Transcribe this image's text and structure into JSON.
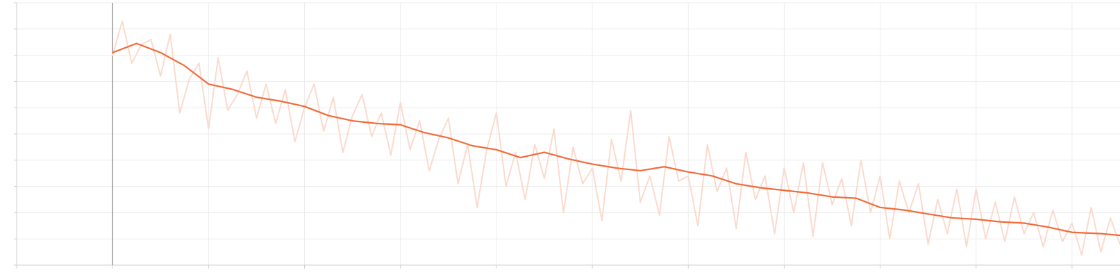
{
  "chart_data": {
    "type": "line",
    "title": "",
    "xlabel": "",
    "ylabel": "",
    "xlim": [
      -1,
      10.5
    ],
    "ylim": [
      0,
      10
    ],
    "grid": true,
    "legend": "none",
    "colors": {
      "smoothed": "#f26b3a",
      "raw": "#fbd8cb",
      "grid": "#ececec",
      "axis": "#cfcfcf",
      "zero_line": "#999999"
    },
    "series": [
      {
        "role": "smoothed",
        "x": [
          0,
          0.25,
          0.5,
          0.75,
          1,
          1.25,
          1.5,
          1.75,
          2,
          2.25,
          2.5,
          2.75,
          3,
          3.25,
          3.5,
          3.75,
          4,
          4.25,
          4.5,
          4.75,
          5,
          5.25,
          5.5,
          5.75,
          6,
          6.25,
          6.5,
          6.75,
          7,
          7.25,
          7.5,
          7.75,
          8,
          8.25,
          8.5,
          8.75,
          9,
          9.25,
          9.5,
          9.75,
          10,
          10.3,
          10.6
        ],
        "y": [
          8.1,
          8.45,
          8.1,
          7.6,
          6.9,
          6.7,
          6.4,
          6.25,
          6.05,
          5.7,
          5.5,
          5.4,
          5.35,
          5.05,
          4.85,
          4.55,
          4.4,
          4.1,
          4.3,
          4.05,
          3.85,
          3.7,
          3.6,
          3.75,
          3.55,
          3.4,
          3.1,
          2.95,
          2.85,
          2.75,
          2.6,
          2.55,
          2.2,
          2.1,
          1.95,
          1.8,
          1.75,
          1.65,
          1.6,
          1.45,
          1.25,
          1.2,
          1.1
        ]
      },
      {
        "role": "raw",
        "x": [
          0,
          0.1,
          0.2,
          0.3,
          0.4,
          0.5,
          0.6,
          0.7,
          0.8,
          0.9,
          1,
          1.1,
          1.2,
          1.3,
          1.4,
          1.5,
          1.6,
          1.7,
          1.8,
          1.9,
          2,
          2.1,
          2.2,
          2.3,
          2.4,
          2.5,
          2.6,
          2.7,
          2.8,
          2.9,
          3,
          3.1,
          3.2,
          3.3,
          3.4,
          3.5,
          3.6,
          3.7,
          3.8,
          3.9,
          4,
          4.1,
          4.2,
          4.3,
          4.4,
          4.5,
          4.6,
          4.7,
          4.8,
          4.9,
          5,
          5.1,
          5.2,
          5.3,
          5.4,
          5.5,
          5.6,
          5.7,
          5.8,
          5.9,
          6,
          6.1,
          6.2,
          6.3,
          6.4,
          6.5,
          6.6,
          6.7,
          6.8,
          6.9,
          7,
          7.1,
          7.2,
          7.3,
          7.4,
          7.5,
          7.6,
          7.7,
          7.8,
          7.9,
          8,
          8.1,
          8.2,
          8.3,
          8.4,
          8.5,
          8.6,
          8.7,
          8.8,
          8.9,
          9,
          9.1,
          9.2,
          9.3,
          9.4,
          9.5,
          9.6,
          9.7,
          9.8,
          9.9,
          10,
          10.1,
          10.2,
          10.3,
          10.4,
          10.5,
          10.6
        ],
        "y": [
          8.0,
          9.3,
          7.7,
          8.4,
          8.6,
          7.2,
          8.8,
          5.8,
          7.1,
          7.7,
          5.2,
          7.9,
          5.9,
          6.5,
          7.4,
          5.6,
          6.9,
          5.4,
          6.7,
          4.7,
          6.0,
          6.9,
          5.1,
          6.4,
          4.3,
          5.7,
          6.5,
          4.9,
          5.8,
          4.2,
          6.2,
          4.4,
          5.5,
          3.6,
          4.8,
          5.6,
          3.1,
          4.6,
          2.2,
          4.4,
          5.8,
          3.0,
          4.3,
          2.5,
          4.6,
          3.3,
          5.2,
          2.0,
          4.5,
          3.1,
          3.7,
          1.7,
          4.8,
          3.2,
          5.9,
          2.4,
          3.4,
          1.9,
          4.9,
          3.2,
          3.4,
          1.5,
          4.6,
          2.8,
          3.7,
          1.4,
          4.3,
          2.5,
          3.4,
          1.2,
          3.7,
          2.0,
          3.9,
          1.1,
          3.9,
          2.3,
          3.3,
          1.5,
          4.0,
          2.0,
          3.4,
          1.0,
          3.2,
          2.0,
          3.1,
          0.8,
          2.5,
          1.2,
          2.9,
          0.7,
          2.9,
          1.0,
          2.4,
          0.9,
          2.6,
          1.2,
          2.0,
          0.7,
          2.1,
          0.9,
          1.6,
          0.4,
          2.2,
          0.5,
          1.8,
          0.8,
          1.6
        ]
      }
    ]
  }
}
